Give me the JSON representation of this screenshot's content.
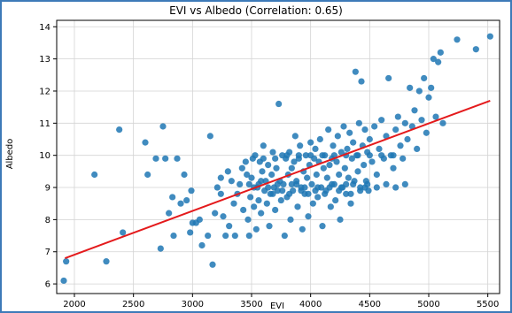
{
  "chart_data": {
    "type": "scatter",
    "title": "EVI vs Albedo (Correlation: 0.65)",
    "xlabel": "EVI",
    "ylabel": "Albedo",
    "xlim": [
      1850,
      5600
    ],
    "ylim": [
      5.7,
      14.2
    ],
    "x_ticks": [
      2000,
      2500,
      3000,
      3500,
      4000,
      4500,
      5000,
      5500
    ],
    "y_ticks": [
      6,
      7,
      8,
      9,
      10,
      11,
      12,
      13,
      14
    ],
    "grid": true,
    "colors": {
      "points": "#1f77b4",
      "fit_line": "#e41a1c",
      "grid": "#d3d3d3"
    },
    "fit_line": {
      "x": [
        1920,
        5520
      ],
      "y": [
        6.8,
        11.7
      ]
    },
    "points": [
      [
        1910,
        6.1
      ],
      [
        1930,
        6.7
      ],
      [
        2170,
        9.4
      ],
      [
        2270,
        6.7
      ],
      [
        2380,
        10.8
      ],
      [
        2410,
        7.6
      ],
      [
        2600,
        10.4
      ],
      [
        2690,
        9.9
      ],
      [
        2730,
        7.1
      ],
      [
        2750,
        10.9
      ],
      [
        2770,
        9.9
      ],
      [
        2800,
        8.2
      ],
      [
        2830,
        8.7
      ],
      [
        2840,
        7.5
      ],
      [
        2870,
        9.9
      ],
      [
        2900,
        8.5
      ],
      [
        2930,
        9.4
      ],
      [
        2950,
        8.6
      ],
      [
        2990,
        8.9
      ],
      [
        3000,
        7.9
      ],
      [
        3030,
        7.9
      ],
      [
        3060,
        8.0
      ],
      [
        3080,
        7.2
      ],
      [
        3130,
        7.5
      ],
      [
        3150,
        10.6
      ],
      [
        3170,
        6.6
      ],
      [
        3190,
        8.2
      ],
      [
        3210,
        9.0
      ],
      [
        3240,
        8.8
      ],
      [
        3260,
        8.1
      ],
      [
        3280,
        7.5
      ],
      [
        3300,
        9.5
      ],
      [
        3310,
        7.8
      ],
      [
        3330,
        9.2
      ],
      [
        3350,
        8.5
      ],
      [
        3360,
        7.5
      ],
      [
        3380,
        8.8
      ],
      [
        3400,
        9.1
      ],
      [
        3420,
        9.6
      ],
      [
        3430,
        8.3
      ],
      [
        3450,
        9.8
      ],
      [
        3460,
        9.4
      ],
      [
        3470,
        8.0
      ],
      [
        3480,
        7.5
      ],
      [
        3490,
        8.7
      ],
      [
        3500,
        9.3
      ],
      [
        3510,
        9.9
      ],
      [
        3520,
        8.4
      ],
      [
        3530,
        10.0
      ],
      [
        3540,
        7.7
      ],
      [
        3550,
        9.0
      ],
      [
        3560,
        8.6
      ],
      [
        3570,
        9.8
      ],
      [
        3580,
        8.2
      ],
      [
        3590,
        9.5
      ],
      [
        3600,
        10.3
      ],
      [
        3610,
        8.9
      ],
      [
        3620,
        9.2
      ],
      [
        3630,
        8.5
      ],
      [
        3640,
        9.7
      ],
      [
        3650,
        7.8
      ],
      [
        3660,
        8.8
      ],
      [
        3670,
        9.4
      ],
      [
        3680,
        10.1
      ],
      [
        3690,
        9.0
      ],
      [
        3700,
        8.3
      ],
      [
        3710,
        9.6
      ],
      [
        3720,
        8.9
      ],
      [
        3730,
        11.6
      ],
      [
        3740,
        9.2
      ],
      [
        3750,
        8.6
      ],
      [
        3760,
        10.0
      ],
      [
        3770,
        9.1
      ],
      [
        3780,
        7.5
      ],
      [
        3790,
        9.9
      ],
      [
        3800,
        8.7
      ],
      [
        3810,
        9.4
      ],
      [
        3820,
        10.1
      ],
      [
        3830,
        8.0
      ],
      [
        3840,
        9.6
      ],
      [
        3850,
        8.9
      ],
      [
        3860,
        9.8
      ],
      [
        3870,
        10.6
      ],
      [
        3880,
        9.2
      ],
      [
        3890,
        8.4
      ],
      [
        3900,
        9.9
      ],
      [
        3910,
        10.3
      ],
      [
        3920,
        9.0
      ],
      [
        3930,
        7.7
      ],
      [
        3940,
        9.5
      ],
      [
        3950,
        8.8
      ],
      [
        3960,
        10.0
      ],
      [
        3970,
        9.3
      ],
      [
        3980,
        8.1
      ],
      [
        3990,
        9.7
      ],
      [
        4000,
        10.4
      ],
      [
        4010,
        9.1
      ],
      [
        4020,
        8.5
      ],
      [
        4030,
        9.9
      ],
      [
        4040,
        10.2
      ],
      [
        4050,
        9.4
      ],
      [
        4060,
        8.7
      ],
      [
        4070,
        9.8
      ],
      [
        4080,
        10.5
      ],
      [
        4090,
        9.0
      ],
      [
        4100,
        7.8
      ],
      [
        4110,
        9.6
      ],
      [
        4120,
        10.0
      ],
      [
        4130,
        8.9
      ],
      [
        4140,
        9.3
      ],
      [
        4150,
        10.8
      ],
      [
        4160,
        9.7
      ],
      [
        4170,
        8.4
      ],
      [
        4180,
        9.9
      ],
      [
        4190,
        10.3
      ],
      [
        4200,
        9.1
      ],
      [
        4210,
        8.6
      ],
      [
        4220,
        9.8
      ],
      [
        4230,
        10.6
      ],
      [
        4240,
        9.4
      ],
      [
        4250,
        8.0
      ],
      [
        4260,
        10.1
      ],
      [
        4270,
        9.0
      ],
      [
        4280,
        10.9
      ],
      [
        4290,
        9.6
      ],
      [
        4300,
        8.8
      ],
      [
        4310,
        10.2
      ],
      [
        4320,
        9.3
      ],
      [
        4330,
        10.7
      ],
      [
        4340,
        8.5
      ],
      [
        4350,
        9.9
      ],
      [
        4360,
        10.4
      ],
      [
        4370,
        9.2
      ],
      [
        4380,
        12.6
      ],
      [
        4390,
        10.0
      ],
      [
        4400,
        9.5
      ],
      [
        4410,
        11.0
      ],
      [
        4420,
        9.0
      ],
      [
        4430,
        12.3
      ],
      [
        4440,
        10.3
      ],
      [
        4450,
        9.7
      ],
      [
        4460,
        10.8
      ],
      [
        4470,
        9.2
      ],
      [
        4480,
        10.1
      ],
      [
        4490,
        8.9
      ],
      [
        4500,
        10.5
      ],
      [
        4520,
        9.8
      ],
      [
        4540,
        10.9
      ],
      [
        4560,
        9.4
      ],
      [
        4580,
        10.2
      ],
      [
        4600,
        11.1
      ],
      [
        4620,
        9.9
      ],
      [
        4640,
        10.6
      ],
      [
        4660,
        12.4
      ],
      [
        4680,
        10.0
      ],
      [
        4700,
        9.6
      ],
      [
        4720,
        10.8
      ],
      [
        4740,
        11.2
      ],
      [
        4760,
        10.3
      ],
      [
        4780,
        9.9
      ],
      [
        4800,
        11.0
      ],
      [
        4820,
        10.5
      ],
      [
        4840,
        12.1
      ],
      [
        4860,
        10.9
      ],
      [
        4880,
        11.4
      ],
      [
        4900,
        10.2
      ],
      [
        4920,
        12.0
      ],
      [
        4940,
        11.1
      ],
      [
        4960,
        12.4
      ],
      [
        4980,
        10.7
      ],
      [
        5000,
        11.8
      ],
      [
        5020,
        12.1
      ],
      [
        5040,
        13.0
      ],
      [
        5060,
        11.2
      ],
      [
        5080,
        12.9
      ],
      [
        5100,
        13.2
      ],
      [
        5120,
        11.0
      ],
      [
        5240,
        13.6
      ],
      [
        5400,
        13.3
      ],
      [
        5520,
        13.7
      ],
      [
        2620,
        9.4
      ],
      [
        2980,
        7.6
      ],
      [
        3240,
        9.3
      ],
      [
        3560,
        9.1
      ],
      [
        3720,
        9.1
      ],
      [
        3840,
        9.1
      ],
      [
        3950,
        9.0
      ],
      [
        4060,
        9.0
      ],
      [
        4160,
        9.0
      ],
      [
        4260,
        9.0
      ],
      [
        4360,
        9.1
      ],
      [
        4460,
        9.0
      ],
      [
        3600,
        9.9
      ],
      [
        3700,
        9.9
      ],
      [
        3800,
        10.0
      ],
      [
        3900,
        10.0
      ],
      [
        4000,
        10.0
      ],
      [
        4100,
        10.0
      ],
      [
        4200,
        10.0
      ],
      [
        4300,
        10.0
      ],
      [
        4400,
        10.0
      ],
      [
        4500,
        10.0
      ],
      [
        4600,
        10.0
      ],
      [
        4700,
        10.0
      ],
      [
        3480,
        9.1
      ],
      [
        3520,
        9.0
      ],
      [
        3580,
        9.2
      ],
      [
        3640,
        9.0
      ],
      [
        3680,
        8.8
      ],
      [
        3760,
        8.9
      ],
      [
        3820,
        8.8
      ],
      [
        3880,
        9.1
      ],
      [
        3920,
        8.9
      ],
      [
        3980,
        8.8
      ],
      [
        4040,
        8.9
      ],
      [
        4120,
        8.8
      ],
      [
        4180,
        9.1
      ],
      [
        4240,
        8.9
      ],
      [
        4300,
        9.1
      ],
      [
        4340,
        8.8
      ],
      [
        4420,
        8.9
      ],
      [
        4480,
        9.1
      ],
      [
        4560,
        9.0
      ],
      [
        4640,
        9.1
      ],
      [
        4720,
        9.0
      ],
      [
        4800,
        9.1
      ]
    ]
  }
}
